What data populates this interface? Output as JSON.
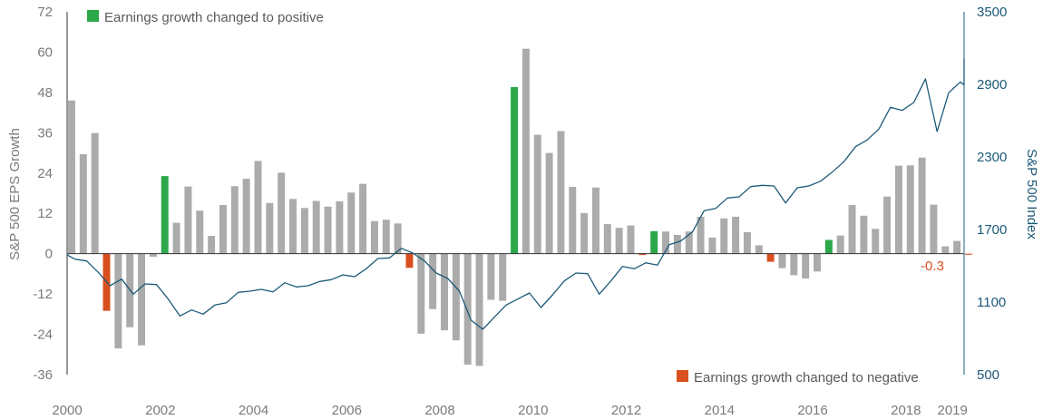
{
  "chart_data": {
    "type": "bar",
    "title": "",
    "colors": {
      "neutral": "#ababab",
      "positive": "#2ba84a",
      "negative": "#d94f1e",
      "index_line": "#1c5a78",
      "axis": "#333333",
      "right_axis": "#1c5a78"
    },
    "x_range": [
      2000,
      2019.25
    ],
    "x_tick_labels": [
      {
        "value": 2000,
        "label": "2000"
      },
      {
        "value": 2002,
        "label": "2002"
      },
      {
        "value": 2004,
        "label": "2004"
      },
      {
        "value": 2006,
        "label": "2006"
      },
      {
        "value": 2008,
        "label": "2008"
      },
      {
        "value": 2010,
        "label": "2010"
      },
      {
        "value": 2012,
        "label": "2012"
      },
      {
        "value": 2014,
        "label": "2014"
      },
      {
        "value": 2016,
        "label": "2016"
      },
      {
        "value": 2018,
        "label": "2018"
      },
      {
        "value": 2019,
        "label": "2019"
      }
    ],
    "ylabel": "S&P 500 EPS Growth",
    "y2label": "S&P 500 Index",
    "ylim": [
      -36,
      72
    ],
    "y2lim": [
      500,
      3500
    ],
    "y_ticks": [
      {
        "value": 72,
        "label": "72"
      },
      {
        "value": 60,
        "label": "60"
      },
      {
        "value": 48,
        "label": "48"
      },
      {
        "value": 36,
        "label": "36"
      },
      {
        "value": 24,
        "label": "24"
      },
      {
        "value": 12,
        "label": "12"
      },
      {
        "value": 0,
        "label": "0"
      },
      {
        "value": -12,
        "label": "-12"
      },
      {
        "value": -24,
        "label": "-24"
      },
      {
        "value": -36,
        "label": "-36"
      }
    ],
    "y2_ticks": [
      {
        "value": 3500,
        "label": "3500"
      },
      {
        "value": 2900,
        "label": "2900"
      },
      {
        "value": 2300,
        "label": "2300"
      },
      {
        "value": 1700,
        "label": "1700"
      },
      {
        "value": 1100,
        "label": "1100"
      },
      {
        "value": 500,
        "label": "500"
      }
    ],
    "legend": {
      "positive_label": "Earnings growth changed to positive",
      "negative_label": "Earnings growth changed to negative"
    },
    "annotation": {
      "label": "-0.3",
      "value": -0.3
    },
    "series": [
      {
        "type": "bar",
        "start": 2000.0,
        "step": 0.25,
        "values": [
          45.6,
          29.6,
          35.9,
          -17.0,
          -28.2,
          -21.9,
          -27.3,
          -0.9,
          23.1,
          9.2,
          20.0,
          12.8,
          5.3,
          14.5,
          20.1,
          22.3,
          27.6,
          15.1,
          24.1,
          16.3,
          13.6,
          15.7,
          14.0,
          15.6,
          18.2,
          20.8,
          9.7,
          10.1,
          9.0,
          -4.2,
          -23.8,
          -16.5,
          -22.8,
          -25.8,
          -33.0,
          -33.4,
          -13.7,
          -14.0,
          49.6,
          61.0,
          35.4,
          30.0,
          36.5,
          19.9,
          12.1,
          19.7,
          8.8,
          7.7,
          8.4,
          -0.4,
          6.7,
          6.6,
          5.6,
          6.6,
          11.0,
          4.8,
          10.5,
          11.0,
          6.4,
          2.5,
          -2.4,
          -4.3,
          -6.4,
          -7.4,
          -5.3,
          4.1,
          5.4,
          14.5,
          11.3,
          7.4,
          17.0,
          26.2,
          26.3,
          28.6,
          14.6,
          2.2,
          3.8,
          -0.3
        ],
        "colors": {
          "3": "negative",
          "8": "positive",
          "29": "negative",
          "38": "positive",
          "49": "negative",
          "50": "positive",
          "60": "negative",
          "65": "positive",
          "77": "negative"
        }
      },
      {
        "type": "line",
        "x": [
          2000.0,
          2000.17,
          2000.42,
          2000.67,
          2000.92,
          2001.17,
          2001.42,
          2001.67,
          2001.92,
          2002.17,
          2002.42,
          2002.67,
          2002.92,
          2003.17,
          2003.42,
          2003.67,
          2003.92,
          2004.17,
          2004.42,
          2004.67,
          2004.92,
          2005.17,
          2005.42,
          2005.67,
          2005.92,
          2006.17,
          2006.42,
          2006.67,
          2006.92,
          2007.17,
          2007.42,
          2007.67,
          2007.92,
          2008.17,
          2008.42,
          2008.67,
          2008.92,
          2009.17,
          2009.42,
          2009.67,
          2009.92,
          2010.17,
          2010.42,
          2010.67,
          2010.92,
          2011.17,
          2011.42,
          2011.67,
          2011.92,
          2012.17,
          2012.42,
          2012.67,
          2012.92,
          2013.17,
          2013.42,
          2013.67,
          2013.92,
          2014.17,
          2014.42,
          2014.67,
          2014.92,
          2015.17,
          2015.42,
          2015.67,
          2015.92,
          2016.17,
          2016.42,
          2016.67,
          2016.92,
          2017.17,
          2017.42,
          2017.67,
          2017.92,
          2018.17,
          2018.42,
          2018.67,
          2018.92,
          2019.17,
          2019.42,
          2019.75,
          2020.0
        ],
        "y": [
          1490,
          1455,
          1440,
          1345,
          1235,
          1290,
          1165,
          1250,
          1245,
          1125,
          985,
          1035,
          1000,
          1075,
          1095,
          1180,
          1190,
          1205,
          1185,
          1260,
          1225,
          1235,
          1270,
          1285,
          1325,
          1310,
          1375,
          1460,
          1465,
          1545,
          1505,
          1440,
          1340,
          1295,
          1190,
          950,
          875,
          975,
          1075,
          1125,
          1175,
          1055,
          1160,
          1275,
          1340,
          1335,
          1165,
          1275,
          1395,
          1375,
          1425,
          1405,
          1575,
          1605,
          1680,
          1855,
          1875,
          1960,
          1970,
          2055,
          2065,
          2060,
          1920,
          2045,
          2060,
          2100,
          2175,
          2260,
          2385,
          2440,
          2530,
          2710,
          2685,
          2750,
          2945,
          2510,
          2830,
          2920,
          2895,
          3020,
          3110
        ]
      }
    ]
  }
}
